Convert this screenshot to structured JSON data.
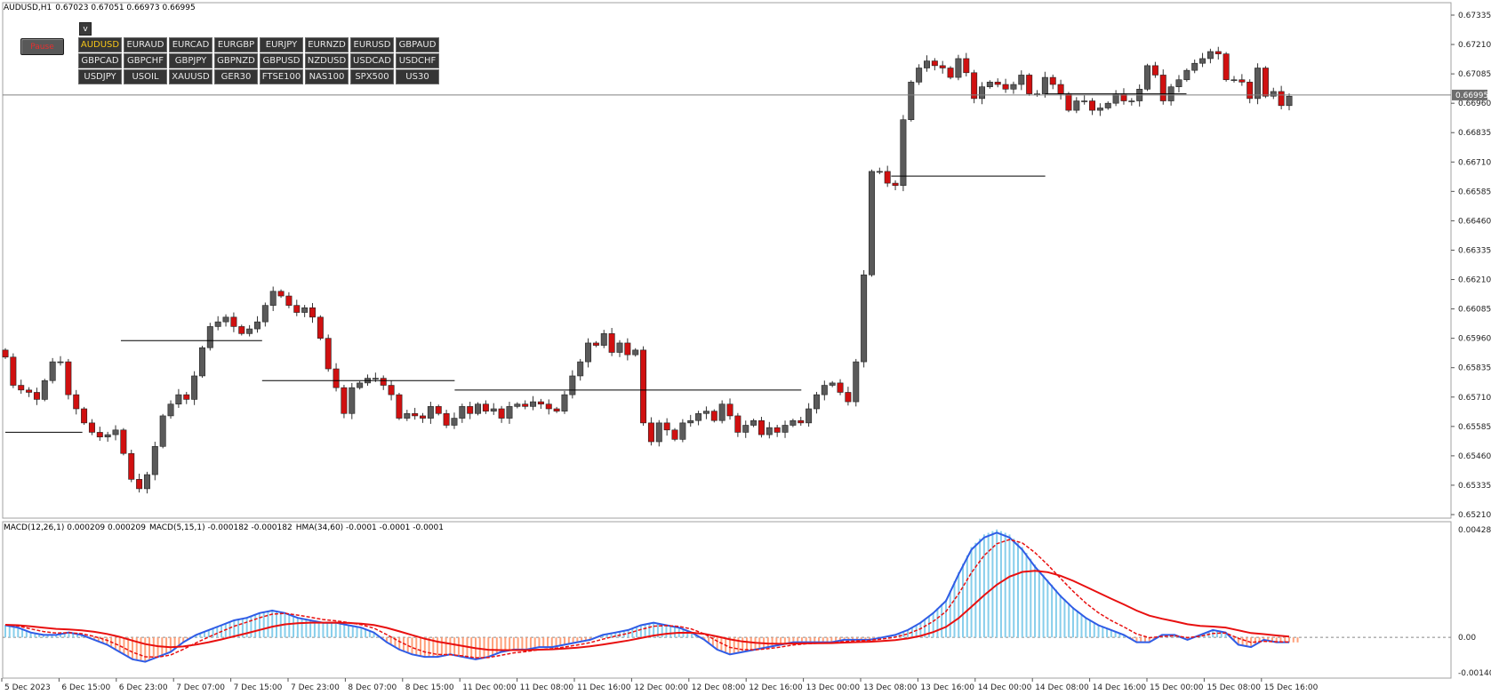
{
  "header": {
    "symbol": "AUDUSD,H1",
    "ohlc": "0.67023 0.67051 0.66973 0.66995"
  },
  "indicator_header": {
    "macd1": "MACD(12,26,1) 0.000209 0.000209",
    "macd2": "MACD(5,15,1) -0.000182 -0.000182",
    "hma": "HMA(34,60) -0.0001 -0.0001 -0.0001"
  },
  "controls": {
    "pause_label": "Pause",
    "v_label": "v",
    "symbols": [
      "AUDUSD",
      "EURAUD",
      "EURCAD",
      "EURGBP",
      "EURJPY",
      "EURNZD",
      "EURUSD",
      "GBPAUD",
      "GBPCAD",
      "GBPCHF",
      "GBPJPY",
      "GBPNZD",
      "GBPUSD",
      "NZDUSD",
      "USDCAD",
      "USDCHF",
      "USDJPY",
      "USOIL",
      "XAUUSD",
      "GER30",
      "FTSE100",
      "NAS100",
      "SPX500",
      "US30"
    ],
    "active_symbol": "AUDUSD"
  },
  "colors": {
    "bull": "#5a5a5a",
    "bear": "#d01010",
    "macd_pos": "#87ceeb",
    "macd_neg": "#ffa07a",
    "blue_line": "#2f5ce6",
    "red_line": "#e81010",
    "price_line": "#808080",
    "active_button_text": "#f5c518"
  },
  "chart_data": [
    {
      "type": "candlestick",
      "title": "AUDUSD,H1",
      "current_price": "0.66995",
      "ylim": [
        0.6521,
        0.67335
      ],
      "y_ticks": [
        "0.67335",
        "0.67210",
        "0.67085",
        "0.66960",
        "0.66835",
        "0.66710",
        "0.66585",
        "0.66460",
        "0.66335",
        "0.66210",
        "0.66085",
        "0.65960",
        "0.65835",
        "0.65710",
        "0.65585",
        "0.65460",
        "0.65335",
        "0.65210"
      ],
      "x_ticks": [
        "5 Dec 2023",
        "6 Dec 15:00",
        "6 Dec 23:00",
        "7 Dec 07:00",
        "7 Dec 15:00",
        "7 Dec 23:00",
        "8 Dec 07:00",
        "8 Dec 15:00",
        "11 Dec 00:00",
        "11 Dec 08:00",
        "11 Dec 16:00",
        "12 Dec 00:00",
        "12 Dec 08:00",
        "12 Dec 16:00",
        "13 Dec 00:00",
        "13 Dec 08:00",
        "13 Dec 16:00",
        "14 Dec 00:00",
        "14 Dec 08:00",
        "14 Dec 16:00",
        "15 Dec 00:00",
        "15 Dec 08:00",
        "15 Dec 16:00"
      ],
      "candles_close": [
        0.6588,
        0.6576,
        0.6574,
        0.6573,
        0.657,
        0.6578,
        0.6586,
        0.6586,
        0.6572,
        0.6566,
        0.656,
        0.6556,
        0.6554,
        0.6555,
        0.6557,
        0.6547,
        0.6536,
        0.6532,
        0.6538,
        0.655,
        0.6563,
        0.6568,
        0.6572,
        0.657,
        0.658,
        0.6592,
        0.6601,
        0.6603,
        0.6605,
        0.6601,
        0.6598,
        0.66,
        0.6603,
        0.661,
        0.6616,
        0.6614,
        0.661,
        0.6607,
        0.6609,
        0.6605,
        0.6596,
        0.6583,
        0.6575,
        0.6564,
        0.6575,
        0.6577,
        0.6579,
        0.6579,
        0.6576,
        0.6572,
        0.6562,
        0.6564,
        0.6563,
        0.6562,
        0.6567,
        0.6564,
        0.6559,
        0.6562,
        0.6567,
        0.6564,
        0.6568,
        0.6565,
        0.6566,
        0.6562,
        0.6567,
        0.6568,
        0.6567,
        0.6569,
        0.6568,
        0.6566,
        0.6565,
        0.6572,
        0.658,
        0.6586,
        0.6594,
        0.6593,
        0.6598,
        0.659,
        0.6594,
        0.6589,
        0.6591,
        0.656,
        0.6552,
        0.656,
        0.6557,
        0.6553,
        0.656,
        0.6561,
        0.6564,
        0.6565,
        0.6561,
        0.6568,
        0.6563,
        0.6556,
        0.6559,
        0.6561,
        0.6555,
        0.6558,
        0.6556,
        0.6559,
        0.6561,
        0.656,
        0.6566,
        0.6572,
        0.6576,
        0.6577,
        0.6573,
        0.6569,
        0.6586,
        0.6623,
        0.6667,
        0.6667,
        0.6662,
        0.6661,
        0.6689,
        0.6705,
        0.6711,
        0.6714,
        0.6712,
        0.6711,
        0.6707,
        0.6715,
        0.6709,
        0.6698,
        0.6703,
        0.6705,
        0.6704,
        0.6702,
        0.6704,
        0.6708,
        0.67,
        0.67,
        0.6707,
        0.6704,
        0.67,
        0.6693,
        0.6697,
        0.6697,
        0.6693,
        0.6694,
        0.6696,
        0.67,
        0.6697,
        0.6697,
        0.6702,
        0.6712,
        0.6708,
        0.6697,
        0.6703,
        0.6706,
        0.671,
        0.6713,
        0.6715,
        0.6718,
        0.6717,
        0.6706,
        0.6706,
        0.6705,
        0.6698,
        0.6711,
        0.6699,
        0.6701,
        0.6695,
        0.6699
      ],
      "support_levels": [
        0.6556,
        0.6595,
        0.6578,
        0.6574,
        0.6665,
        0.67
      ]
    },
    {
      "type": "line",
      "title": "MACD(12,26,1) / MACD(5,15,1) / HMA(34,60)",
      "ylim": [
        -0.00141,
        0.004289
      ],
      "y_ticks": [
        "0.004289",
        "0.00",
        "-0.001406"
      ],
      "histogram": [
        0.0005,
        0.0004,
        0.0002,
        0.0001,
        0.0001,
        0.0002,
        0.0001,
        -0.0001,
        -0.0003,
        -0.0006,
        -0.0009,
        -0.001,
        -0.0008,
        -0.0006,
        -0.0002,
        0.0001,
        0.0003,
        0.0005,
        0.0007,
        0.0008,
        0.001,
        0.0011,
        0.001,
        0.0008,
        0.0007,
        0.0006,
        0.0006,
        0.0005,
        0.0004,
        0.0002,
        -0.0002,
        -0.0005,
        -0.0007,
        -0.0008,
        -0.0008,
        -0.0007,
        -0.0008,
        -0.0009,
        -0.0008,
        -0.0006,
        -0.0005,
        -0.0005,
        -0.0004,
        -0.0004,
        -0.0003,
        -0.0002,
        -0.0001,
        0.0001,
        0.0002,
        0.0003,
        0.0005,
        0.0006,
        0.0005,
        0.0004,
        0.0002,
        -0.0001,
        -0.0005,
        -0.0007,
        -0.0006,
        -0.0005,
        -0.0004,
        -0.0003,
        -0.0002,
        -0.0002,
        -0.0002,
        -0.0002,
        -0.0001,
        -0.0001,
        -0.0001,
        0.0,
        0.0001,
        0.0003,
        0.0006,
        0.001,
        0.0015,
        0.0026,
        0.0036,
        0.0041,
        0.0043,
        0.0041,
        0.0036,
        0.0029,
        0.0023,
        0.0017,
        0.0012,
        0.0008,
        0.0005,
        0.0003,
        0.0001,
        -0.0002,
        -0.0002,
        0.0001,
        0.0001,
        -0.0001,
        0.0001,
        0.0003,
        0.0002,
        -0.0003,
        -0.0004,
        -0.0001,
        -0.0002,
        -0.0002
      ]
    }
  ]
}
